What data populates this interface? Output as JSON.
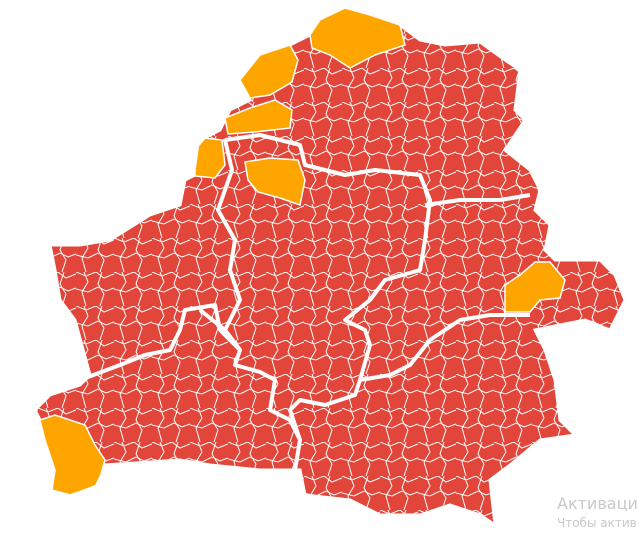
{
  "map": {
    "colors": {
      "base": "#e2463a",
      "highlight": "#ffa500",
      "border": "#ffffff",
      "background": "#ffffff"
    },
    "legend_categories": [
      "red",
      "orange"
    ]
  },
  "watermark": {
    "line1": "Активаци",
    "line2": "Чтобы актив"
  }
}
